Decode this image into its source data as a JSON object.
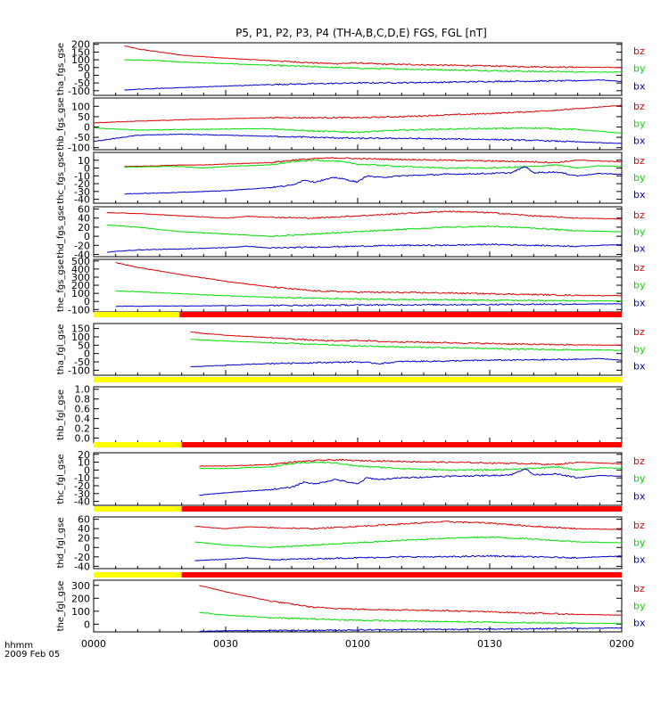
{
  "title": "P5, P1, P2, P3, P4 (TH-A,B,C,D,E) FGS, FGL [nT]",
  "xaxis": {
    "label_top": "hhmm",
    "label_bottom": "2009 Feb 05",
    "ticks": [
      {
        "value": 0,
        "label": "0000"
      },
      {
        "value": 30,
        "label": "0030"
      },
      {
        "value": 60,
        "label": "0100"
      },
      {
        "value": 90,
        "label": "0130"
      },
      {
        "value": 120,
        "label": "0200"
      }
    ],
    "range": [
      0,
      120
    ],
    "unit": "minutes since 00:00 UT"
  },
  "colors": {
    "bx": "#0000cc",
    "by": "#00dd00",
    "bz": "#dd0000",
    "bar_yellow": "#ffff00",
    "bar_red": "#ff0000",
    "frame": "#000000"
  },
  "chart_data": [
    {
      "type": "line",
      "ylabel": "tha_fgs_gse",
      "ylim": [
        -130,
        210
      ],
      "yticks": [
        -100,
        -50,
        0,
        50,
        100,
        150,
        200
      ],
      "series": [
        {
          "name": "bz",
          "x": [
            7,
            10,
            15,
            20,
            30,
            40,
            50,
            55,
            60,
            65,
            70,
            80,
            90,
            100,
            110,
            120
          ],
          "values": [
            190,
            170,
            150,
            130,
            110,
            95,
            80,
            75,
            80,
            72,
            70,
            65,
            60,
            55,
            52,
            50
          ]
        },
        {
          "name": "by",
          "x": [
            7,
            15,
            20,
            30,
            40,
            50,
            60,
            70,
            80,
            90,
            100,
            110,
            120
          ],
          "values": [
            100,
            95,
            85,
            75,
            65,
            55,
            45,
            40,
            35,
            30,
            25,
            22,
            20
          ]
        },
        {
          "name": "bx",
          "x": [
            7,
            15,
            20,
            30,
            40,
            50,
            60,
            70,
            80,
            90,
            100,
            110,
            115,
            120
          ],
          "values": [
            -95,
            -85,
            -80,
            -70,
            -60,
            -55,
            -50,
            -48,
            -45,
            -40,
            -38,
            -35,
            -30,
            -40
          ]
        }
      ]
    },
    {
      "type": "line",
      "ylabel": "thb_fgs_gse",
      "ylim": [
        -110,
        140
      ],
      "yticks": [
        -100,
        -50,
        0,
        50,
        100
      ],
      "series": [
        {
          "name": "bz",
          "x": [
            0,
            10,
            20,
            30,
            40,
            50,
            60,
            70,
            80,
            90,
            100,
            110,
            120
          ],
          "values": [
            20,
            28,
            35,
            40,
            45,
            45,
            45,
            50,
            58,
            65,
            75,
            88,
            105
          ]
        },
        {
          "name": "by",
          "x": [
            0,
            10,
            20,
            30,
            40,
            50,
            60,
            70,
            80,
            90,
            100,
            110,
            120
          ],
          "values": [
            -5,
            -15,
            -12,
            -10,
            -8,
            -20,
            -25,
            -15,
            -10,
            -8,
            -5,
            -12,
            -30
          ]
        },
        {
          "name": "bx",
          "x": [
            0,
            5,
            10,
            20,
            30,
            40,
            50,
            60,
            70,
            80,
            90,
            100,
            110,
            120
          ],
          "values": [
            -70,
            -55,
            -40,
            -35,
            -40,
            -45,
            -50,
            -55,
            -55,
            -58,
            -60,
            -65,
            -72,
            -80
          ]
        }
      ]
    },
    {
      "type": "line",
      "ylabel": "thc_fgs_gse",
      "ylim": [
        -45,
        20
      ],
      "yticks": [
        -40,
        -30,
        -20,
        -10,
        0,
        10
      ],
      "series": [
        {
          "name": "bz",
          "x": [
            7,
            15,
            20,
            25,
            30,
            35,
            40,
            45,
            50,
            55,
            60,
            70,
            80,
            90,
            100,
            105,
            110,
            115,
            120
          ],
          "values": [
            2,
            3,
            4,
            4,
            5,
            6,
            7,
            10,
            12,
            13,
            12,
            11,
            10,
            9,
            8,
            7,
            10,
            9,
            8
          ]
        },
        {
          "name": "by",
          "x": [
            7,
            15,
            20,
            25,
            30,
            35,
            40,
            45,
            50,
            55,
            60,
            70,
            80,
            90,
            100,
            105,
            110,
            115,
            120
          ],
          "values": [
            1,
            2,
            2,
            0,
            2,
            3,
            4,
            8,
            10,
            9,
            5,
            2,
            0,
            0,
            2,
            4,
            0,
            3,
            2
          ]
        },
        {
          "name": "bx",
          "x": [
            7,
            15,
            20,
            25,
            30,
            35,
            40,
            45,
            48,
            50,
            55,
            60,
            62,
            65,
            70,
            80,
            90,
            95,
            98,
            100,
            105,
            110,
            115,
            120
          ],
          "values": [
            -33,
            -32,
            -31,
            -30,
            -29,
            -27,
            -25,
            -22,
            -15,
            -18,
            -12,
            -18,
            -10,
            -12,
            -10,
            -8,
            -7,
            -6,
            2,
            -6,
            -5,
            -10,
            -7,
            -8
          ]
        }
      ]
    },
    {
      "type": "line",
      "ylabel": "thd_fgs_gse",
      "ylim": [
        -45,
        65
      ],
      "yticks": [
        -40,
        -20,
        0,
        20,
        40,
        60
      ],
      "series": [
        {
          "name": "bz",
          "x": [
            3,
            10,
            20,
            30,
            35,
            40,
            50,
            60,
            70,
            80,
            90,
            100,
            110,
            120
          ],
          "values": [
            52,
            50,
            45,
            40,
            44,
            42,
            40,
            45,
            50,
            55,
            52,
            45,
            40,
            38
          ]
        },
        {
          "name": "by",
          "x": [
            3,
            10,
            20,
            30,
            40,
            50,
            60,
            70,
            80,
            90,
            100,
            110,
            120
          ],
          "values": [
            25,
            20,
            10,
            5,
            0,
            5,
            10,
            15,
            20,
            22,
            18,
            12,
            10
          ]
        },
        {
          "name": "bx",
          "x": [
            3,
            10,
            20,
            30,
            35,
            40,
            50,
            60,
            70,
            80,
            90,
            100,
            110,
            120
          ],
          "values": [
            -35,
            -30,
            -28,
            -25,
            -22,
            -26,
            -24,
            -22,
            -20,
            -20,
            -18,
            -20,
            -22,
            -18
          ]
        }
      ]
    },
    {
      "type": "line",
      "ylabel": "the_fgs_gse",
      "ylim": [
        -130,
        520
      ],
      "yticks": [
        -100,
        0,
        100,
        200,
        300,
        400,
        500
      ],
      "series": [
        {
          "name": "bz",
          "x": [
            5,
            10,
            20,
            30,
            40,
            50,
            60,
            70,
            80,
            90,
            100,
            110,
            120
          ],
          "values": [
            480,
            420,
            330,
            250,
            180,
            130,
            115,
            110,
            105,
            95,
            85,
            75,
            70
          ]
        },
        {
          "name": "by",
          "x": [
            5,
            10,
            20,
            30,
            40,
            50,
            60,
            70,
            80,
            90,
            100,
            110,
            120
          ],
          "values": [
            130,
            120,
            95,
            70,
            50,
            40,
            30,
            25,
            20,
            15,
            10,
            8,
            5
          ]
        },
        {
          "name": "bx",
          "x": [
            5,
            10,
            20,
            30,
            40,
            50,
            60,
            70,
            80,
            90,
            100,
            110,
            120
          ],
          "values": [
            -60,
            -58,
            -55,
            -52,
            -50,
            -48,
            -45,
            -42,
            -40,
            -38,
            -35,
            -33,
            -30
          ]
        }
      ]
    },
    {
      "type": "line",
      "ylabel": "tha_fgl_gse",
      "ylim": [
        -130,
        180
      ],
      "yticks": [
        -100,
        -50,
        0,
        50,
        100,
        150
      ],
      "series": [
        {
          "name": "bz",
          "x": [
            22,
            25,
            30,
            40,
            50,
            55,
            60,
            65,
            70,
            80,
            90,
            100,
            110,
            120
          ],
          "values": [
            130,
            120,
            110,
            95,
            80,
            75,
            80,
            72,
            70,
            65,
            60,
            55,
            52,
            50
          ]
        },
        {
          "name": "by",
          "x": [
            22,
            30,
            40,
            50,
            60,
            70,
            80,
            90,
            100,
            110,
            120
          ],
          "values": [
            85,
            75,
            65,
            55,
            45,
            40,
            35,
            30,
            25,
            22,
            20
          ]
        },
        {
          "name": "bx",
          "x": [
            22,
            30,
            40,
            50,
            60,
            65,
            70,
            80,
            90,
            100,
            110,
            115,
            120
          ],
          "values": [
            -80,
            -70,
            -60,
            -55,
            -50,
            -60,
            -48,
            -45,
            -40,
            -38,
            -35,
            -30,
            -40
          ]
        }
      ]
    },
    {
      "type": "line",
      "ylabel": "thb_fgl_gse",
      "ylim": [
        -0.1,
        1.05
      ],
      "yticks": [
        0.0,
        0.2,
        0.4,
        0.6,
        0.8,
        1.0
      ],
      "series": []
    },
    {
      "type": "line",
      "ylabel": "thc_fgl_gse",
      "ylim": [
        -45,
        22
      ],
      "yticks": [
        -40,
        -30,
        -20,
        -10,
        0,
        10,
        20
      ],
      "series": [
        {
          "name": "bz",
          "x": [
            24,
            30,
            35,
            40,
            45,
            50,
            55,
            60,
            70,
            80,
            90,
            100,
            105,
            110,
            115,
            120
          ],
          "values": [
            5,
            5,
            6,
            7,
            10,
            12,
            13,
            12,
            11,
            10,
            9,
            8,
            7,
            10,
            9,
            8
          ]
        },
        {
          "name": "by",
          "x": [
            24,
            30,
            35,
            40,
            45,
            50,
            55,
            60,
            70,
            80,
            90,
            100,
            105,
            110,
            115,
            120
          ],
          "values": [
            2,
            2,
            3,
            4,
            8,
            10,
            9,
            5,
            2,
            0,
            0,
            2,
            4,
            0,
            3,
            2
          ]
        },
        {
          "name": "bx",
          "x": [
            24,
            30,
            35,
            40,
            45,
            48,
            50,
            55,
            60,
            62,
            65,
            70,
            80,
            90,
            95,
            98,
            100,
            105,
            110,
            115,
            120
          ],
          "values": [
            -32,
            -29,
            -27,
            -25,
            -22,
            -15,
            -18,
            -12,
            -18,
            -10,
            -12,
            -10,
            -8,
            -7,
            -6,
            2,
            -6,
            -5,
            -10,
            -7,
            -8
          ]
        }
      ]
    },
    {
      "type": "line",
      "ylabel": "thd_fgl_gse",
      "ylim": [
        -45,
        65
      ],
      "yticks": [
        -40,
        -20,
        0,
        20,
        40,
        60
      ],
      "series": [
        {
          "name": "bz",
          "x": [
            23,
            30,
            35,
            40,
            50,
            60,
            70,
            80,
            90,
            100,
            110,
            120
          ],
          "values": [
            45,
            40,
            44,
            42,
            40,
            45,
            50,
            55,
            52,
            45,
            40,
            38
          ]
        },
        {
          "name": "by",
          "x": [
            23,
            30,
            40,
            50,
            60,
            70,
            80,
            90,
            100,
            110,
            120
          ],
          "values": [
            12,
            5,
            0,
            5,
            10,
            15,
            20,
            22,
            18,
            12,
            10
          ]
        },
        {
          "name": "bx",
          "x": [
            23,
            30,
            35,
            40,
            50,
            60,
            70,
            80,
            90,
            100,
            110,
            120
          ],
          "values": [
            -28,
            -25,
            -22,
            -26,
            -24,
            -22,
            -20,
            -20,
            -18,
            -20,
            -22,
            -18
          ]
        }
      ]
    },
    {
      "type": "line",
      "ylabel": "the_fgl_gse",
      "ylim": [
        -60,
        340
      ],
      "yticks": [
        0,
        100,
        200,
        300
      ],
      "series": [
        {
          "name": "bz",
          "x": [
            24,
            30,
            40,
            50,
            60,
            70,
            80,
            90,
            100,
            110,
            120
          ],
          "values": [
            300,
            250,
            180,
            130,
            115,
            110,
            105,
            95,
            85,
            75,
            70
          ]
        },
        {
          "name": "by",
          "x": [
            24,
            30,
            40,
            50,
            60,
            70,
            80,
            90,
            100,
            110,
            120
          ],
          "values": [
            90,
            70,
            50,
            40,
            30,
            25,
            20,
            15,
            10,
            8,
            5
          ]
        },
        {
          "name": "bx",
          "x": [
            24,
            30,
            40,
            50,
            60,
            70,
            80,
            90,
            100,
            110,
            120
          ],
          "values": [
            -55,
            -52,
            -50,
            -48,
            -45,
            -42,
            -40,
            -38,
            -35,
            -33,
            -30
          ]
        }
      ]
    }
  ],
  "mode_bars": [
    {
      "after_panel": 4,
      "segments": [
        {
          "x0": 0,
          "x1": 19.5,
          "color": "bar_yellow"
        },
        {
          "x0": 19.5,
          "x1": 120,
          "color": "bar_red"
        }
      ]
    },
    {
      "after_panel": 5,
      "segments": [
        {
          "x0": 0,
          "x1": 120,
          "color": "bar_yellow"
        }
      ]
    },
    {
      "after_panel": 6,
      "segments": [
        {
          "x0": 0,
          "x1": 20,
          "color": "bar_yellow"
        },
        {
          "x0": 20,
          "x1": 120,
          "color": "bar_red"
        }
      ]
    },
    {
      "after_panel": 7,
      "segments": [
        {
          "x0": 0,
          "x1": 20,
          "color": "bar_yellow"
        },
        {
          "x0": 20,
          "x1": 120,
          "color": "bar_red"
        }
      ]
    },
    {
      "after_panel": 8,
      "segments": [
        {
          "x0": 0,
          "x1": 20,
          "color": "bar_yellow"
        },
        {
          "x0": 20,
          "x1": 120,
          "color": "bar_red"
        }
      ]
    }
  ]
}
